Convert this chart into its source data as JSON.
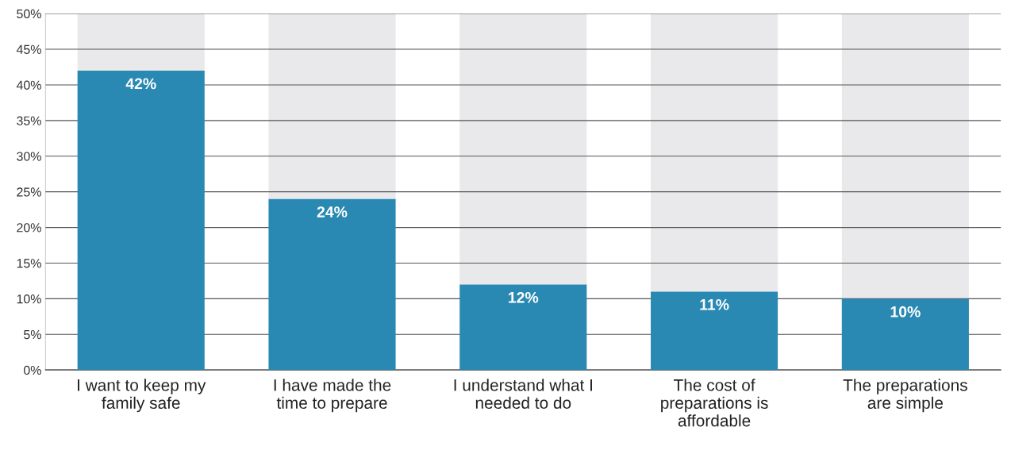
{
  "chart_data": {
    "type": "bar",
    "stacked": true,
    "categories": [
      "I want to keep my\nfamily safe",
      "I have made the\ntime to prepare",
      "I understand what I\nneeded to do",
      "The cost of\npreparations is\naffordable",
      "The preparations\nare simple"
    ],
    "series": [
      {
        "color": "#2a89b2",
        "values": [
          42,
          24,
          12,
          11,
          10
        ],
        "value_labels": [
          "42%",
          "24%",
          "12%",
          "11%",
          "10%"
        ]
      },
      {
        "color": "#e9e9eb",
        "values": [
          8,
          26,
          38,
          39,
          40
        ]
      }
    ],
    "ylim": [
      0,
      50
    ],
    "yticks": [
      {
        "value": 0,
        "label": "0%"
      },
      {
        "value": 5,
        "label": "5%"
      },
      {
        "value": 10,
        "label": "10%"
      },
      {
        "value": 15,
        "label": "15%"
      },
      {
        "value": 20,
        "label": "20%"
      },
      {
        "value": 25,
        "label": "25%"
      },
      {
        "value": 30,
        "label": "30%"
      },
      {
        "value": 35,
        "label": "35%"
      },
      {
        "value": 40,
        "label": "40%"
      },
      {
        "value": 45,
        "label": "45%"
      },
      {
        "value": 50,
        "label": "50%"
      }
    ],
    "grid": "y",
    "legend": false
  }
}
